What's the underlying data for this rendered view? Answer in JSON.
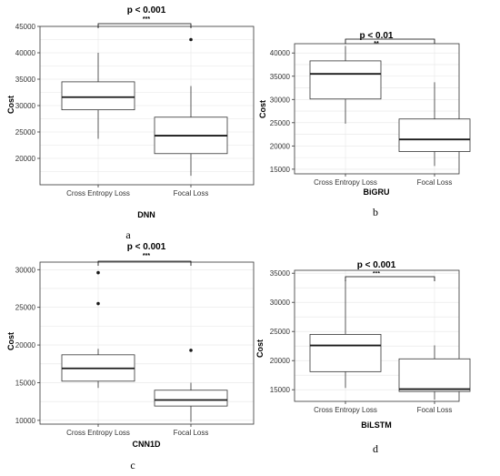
{
  "panel_labels": [
    "a",
    "b",
    "c",
    "d"
  ],
  "chart_data": [
    {
      "type": "boxplot",
      "title": "p < 0.001",
      "significance": "***",
      "xlabel": "DNN",
      "ylabel": "Cost",
      "ylim": [
        15000,
        45000
      ],
      "yticks": [
        20000,
        25000,
        30000,
        35000,
        40000,
        45000
      ],
      "categories": [
        "Cross Entropy Loss",
        "Focal Loss"
      ],
      "boxes": [
        {
          "whisker_low": 23700,
          "q1": 29200,
          "median": 31600,
          "q3": 34500,
          "whisker_high": 40000,
          "outliers": []
        },
        {
          "whisker_low": 16700,
          "q1": 20900,
          "median": 24300,
          "q3": 27800,
          "whisker_high": 33700,
          "outliers": [
            42500
          ]
        }
      ],
      "grid": true
    },
    {
      "type": "boxplot",
      "title": "p < 0.01",
      "significance": "**",
      "xlabel": "BiGRU",
      "ylabel": "Cost",
      "ylim": [
        14000,
        42000
      ],
      "yticks": [
        15000,
        20000,
        25000,
        30000,
        35000,
        40000
      ],
      "categories": [
        "Cross Entropy Loss",
        "Focal Loss"
      ],
      "boxes": [
        {
          "whisker_low": 24800,
          "q1": 30100,
          "median": 35500,
          "q3": 38300,
          "whisker_high": 41500,
          "outliers": []
        },
        {
          "whisker_low": 15700,
          "q1": 18800,
          "median": 21400,
          "q3": 25800,
          "whisker_high": 33700,
          "outliers": []
        }
      ],
      "grid": true
    },
    {
      "type": "boxplot",
      "title": "p < 0.001",
      "significance": "***",
      "xlabel": "CNN1D",
      "ylabel": "Cost",
      "ylim": [
        9500,
        31000
      ],
      "yticks": [
        10000,
        15000,
        20000,
        25000,
        30000
      ],
      "categories": [
        "Cross Entropy Loss",
        "Focal Loss"
      ],
      "boxes": [
        {
          "whisker_low": 14300,
          "q1": 15200,
          "median": 16900,
          "q3": 18700,
          "whisker_high": 19500,
          "outliers": [
            25500,
            29600
          ]
        },
        {
          "whisker_low": 9800,
          "q1": 11900,
          "median": 12700,
          "q3": 14000,
          "whisker_high": 15000,
          "outliers": [
            19300
          ]
        }
      ],
      "grid": true
    },
    {
      "type": "boxplot",
      "title": "p < 0.001",
      "significance": "***",
      "xlabel": "BiLSTM",
      "ylabel": "Cost",
      "ylim": [
        13000,
        35500
      ],
      "yticks": [
        15000,
        20000,
        25000,
        30000,
        35000
      ],
      "categories": [
        "Cross Entropy Loss",
        "Focal Loss"
      ],
      "boxes": [
        {
          "whisker_low": 15300,
          "q1": 18100,
          "median": 22600,
          "q3": 24500,
          "whisker_high": 33800,
          "outliers": []
        },
        {
          "whisker_low": 13300,
          "q1": 14700,
          "median": 15100,
          "q3": 20300,
          "whisker_high": 22600,
          "outliers": []
        }
      ],
      "grid": true
    }
  ]
}
